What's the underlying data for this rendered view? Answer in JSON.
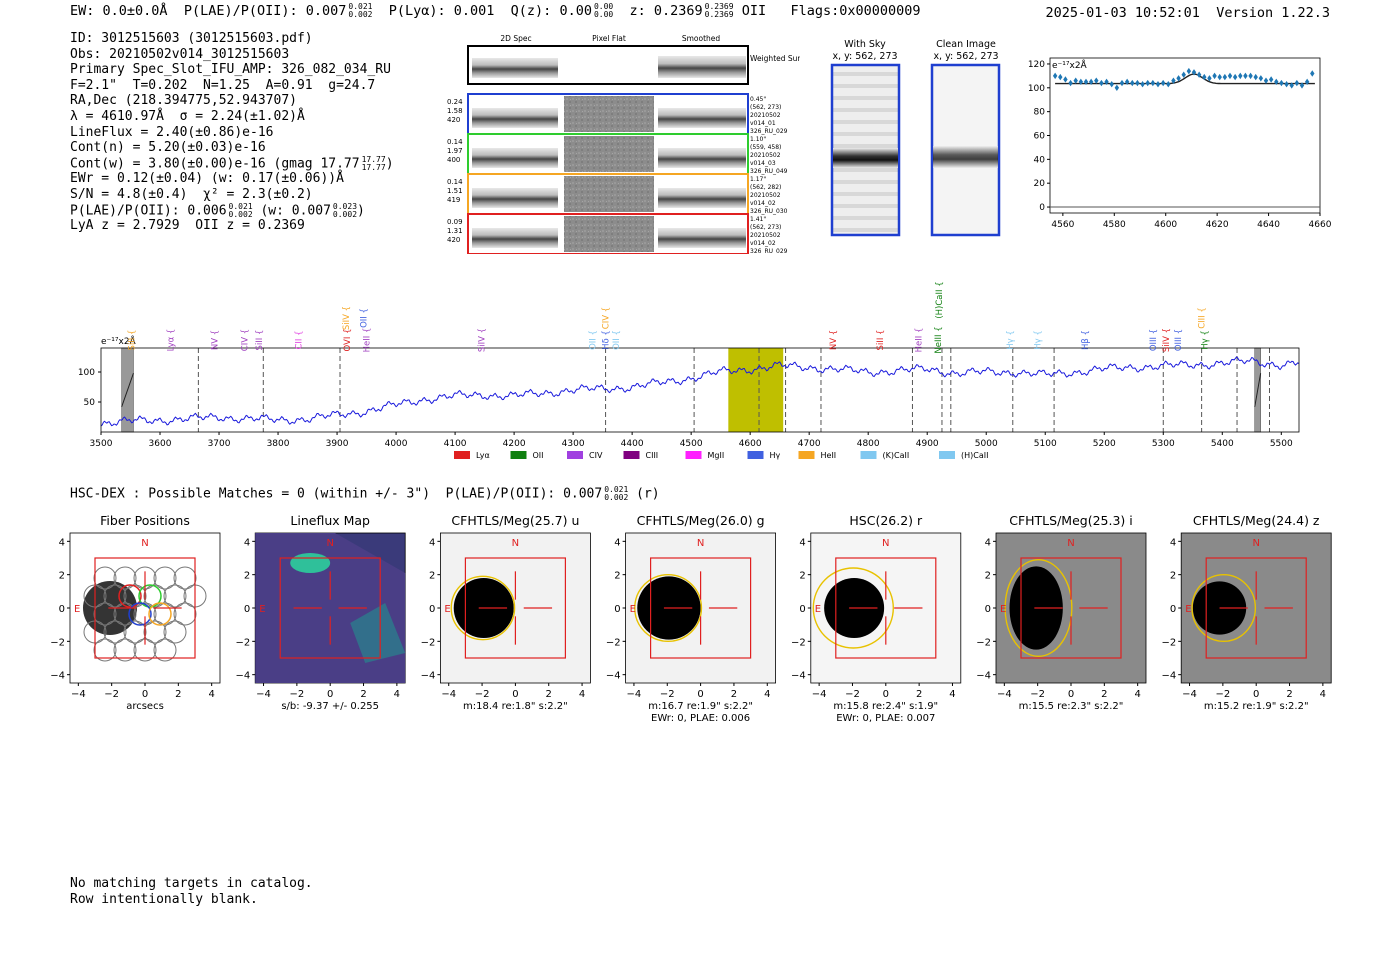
{
  "header": {
    "ew": "EW: 0.0±0.0Å",
    "plae_label": "P(LAE)/P(OII): 0.007",
    "plae_hi": "0.021",
    "plae_lo": "0.002",
    "plya": "P(Lyα): 0.001",
    "qz_label": "Q(z): 0.00",
    "qz_hi": "0.00",
    "qz_lo": "0.00",
    "z_label": "z: 0.2369",
    "z_hi": "0.2369",
    "z_lo": "0.2369",
    "z_line": "OII",
    "flags": "Flags:0x00000009",
    "datetime": "2025-01-03 10:52:01",
    "version": "Version 1.22.3"
  },
  "info": {
    "id": "ID: 3012515603 (3012515603.pdf)",
    "obs": "Obs: 20210502v014_3012515603",
    "primary": "Primary Spec_Slot_IFU_AMP: 326_082_034_RU",
    "params": "F=2.1\"  T=0.202  N=1.25  A=0.91  g=24.7",
    "radec": "RA,Dec (218.394775,52.943707)",
    "lambda": "λ = 4610.97Å  σ = 2.24(±1.02)Å",
    "lineflux": "LineFlux = 2.40(±0.86)e-16",
    "contn": "Cont(n) = 5.20(±0.03)e-16",
    "contw": "Cont(w) = 3.80(±0.00)e-16 (gmag 17.77",
    "contw_hi": "17.77",
    "contw_lo": "17.77",
    "ewr": "EWr = 0.12(±0.04) (w: 0.17(±0.06))Å",
    "sn": "S/N = 4.8(±0.4)  χ² = 2.3(±0.2)",
    "plae": "P(LAE)/P(OII): 0.006",
    "plae_hi": "0.021",
    "plae_lo": "0.002",
    "plae_w": "(w: 0.007",
    "plae_w_hi": "0.023",
    "plae_w_lo": "0.002",
    "lya": "LyA z = 2.7929  OII z = 0.2369"
  },
  "spec2d": {
    "col_headers": [
      "2D Spec",
      "Pixel Flat",
      "Smoothed"
    ],
    "weighted_label": "Weighted Sum",
    "fibers": [
      {
        "left": [
          "0.24",
          "1.58",
          "420"
        ],
        "right": [
          "0.45\"",
          "(562, 273)",
          "20210502",
          "v014_01",
          "326_RU_029"
        ],
        "color": "#1f3fd0"
      },
      {
        "left": [
          "0.14",
          "1.97",
          "400"
        ],
        "right": [
          "1.10\"",
          "(559, 458)",
          "20210502",
          "v014_03",
          "326_RU_049"
        ],
        "color": "#2ecc2e"
      },
      {
        "left": [
          "0.14",
          "1.51",
          "419"
        ],
        "right": [
          "1.17\"",
          "(562, 282)",
          "20210502",
          "v014_02",
          "326_RU_030"
        ],
        "color": "#f5a623"
      },
      {
        "left": [
          "0.09",
          "1.31",
          "420"
        ],
        "right": [
          "1.41\"",
          "(562, 273)",
          "20210502",
          "v014_02",
          "326_RU_029"
        ],
        "color": "#e02020"
      }
    ]
  },
  "sky": {
    "with_sky_title": "With Sky",
    "with_sky_sub": "x, y: 562, 273",
    "clean_title": "Clean Image",
    "clean_sub": "x, y: 562, 273"
  },
  "chart_data": [
    {
      "type": "line",
      "name": "zoom-spectrum",
      "unit_label": "e⁻¹⁷x2Å",
      "xlim": [
        4555,
        4660
      ],
      "ylim": [
        -5,
        125
      ],
      "xticks": [
        4560,
        4580,
        4600,
        4620,
        4640,
        4660
      ],
      "yticks": [
        0,
        20,
        40,
        60,
        80,
        100,
        120
      ],
      "points": [
        [
          4557,
          110
        ],
        [
          4559,
          109
        ],
        [
          4561,
          107
        ],
        [
          4563,
          104
        ],
        [
          4565,
          106
        ],
        [
          4567,
          105
        ],
        [
          4569,
          105
        ],
        [
          4571,
          105
        ],
        [
          4573,
          106
        ],
        [
          4575,
          104
        ],
        [
          4577,
          105
        ],
        [
          4579,
          103
        ],
        [
          4581,
          100
        ],
        [
          4583,
          104
        ],
        [
          4585,
          105
        ],
        [
          4587,
          104
        ],
        [
          4589,
          104
        ],
        [
          4591,
          103
        ],
        [
          4593,
          104
        ],
        [
          4595,
          104
        ],
        [
          4597,
          103
        ],
        [
          4599,
          104
        ],
        [
          4601,
          103
        ],
        [
          4603,
          106
        ],
        [
          4605,
          108
        ],
        [
          4607,
          111
        ],
        [
          4609,
          114
        ],
        [
          4611,
          113
        ],
        [
          4613,
          111
        ],
        [
          4615,
          109
        ],
        [
          4617,
          108
        ],
        [
          4619,
          110
        ],
        [
          4621,
          109
        ],
        [
          4623,
          109
        ],
        [
          4625,
          110
        ],
        [
          4627,
          109
        ],
        [
          4629,
          110
        ],
        [
          4631,
          110
        ],
        [
          4633,
          110
        ],
        [
          4635,
          109
        ],
        [
          4637,
          108
        ],
        [
          4639,
          106
        ],
        [
          4641,
          107
        ],
        [
          4643,
          105
        ],
        [
          4645,
          104
        ],
        [
          4647,
          103
        ],
        [
          4649,
          102
        ],
        [
          4651,
          104
        ],
        [
          4653,
          102
        ],
        [
          4655,
          105
        ],
        [
          4657,
          112
        ]
      ],
      "model": {
        "baseline": 103.5,
        "amplitude": 8,
        "center": 4610.97,
        "sigma": 2.24
      }
    },
    {
      "type": "line",
      "name": "full-spectrum",
      "unit_label": "e⁻¹⁷x2Å",
      "xlim": [
        3500,
        5530
      ],
      "ylim": [
        0,
        140
      ],
      "xticks": [
        3500,
        3600,
        3700,
        3800,
        3900,
        4000,
        4100,
        4200,
        4300,
        4400,
        4500,
        4600,
        4700,
        4800,
        4900,
        5000,
        5100,
        5200,
        5300,
        5400,
        5500
      ],
      "yticks": [
        50,
        100
      ],
      "series": [
        {
          "name": "flux",
          "x": [
            3500,
            3550,
            3600,
            3650,
            3700,
            3750,
            3800,
            3850,
            3900,
            3950,
            4000,
            4050,
            4100,
            4150,
            4200,
            4250,
            4300,
            4350,
            4400,
            4450,
            4500,
            4550,
            4600,
            4650,
            4700,
            4750,
            4800,
            4850,
            4900,
            4950,
            5000,
            5050,
            5100,
            5150,
            5200,
            5250,
            5300,
            5350,
            5400,
            5450,
            5500,
            5530
          ],
          "y": [
            15,
            18,
            20,
            22,
            25,
            22,
            20,
            22,
            28,
            35,
            45,
            55,
            60,
            62,
            60,
            65,
            70,
            72,
            75,
            82,
            90,
            100,
            105,
            110,
            108,
            104,
            100,
            102,
            105,
            98,
            100,
            100,
            95,
            100,
            105,
            108,
            110,
            112,
            115,
            118,
            112,
            115
          ]
        }
      ],
      "highlight": {
        "x0": 4563,
        "x1": 4656,
        "color": "#bfbf00"
      },
      "hatched": [
        [
          3535,
          3555
        ],
        [
          5455,
          5465
        ]
      ],
      "dashed_lines": [
        3665,
        3775,
        3905,
        4355,
        4505,
        4615,
        4660,
        4720,
        4875,
        4925,
        4940,
        5045,
        5115,
        5300,
        5365,
        5425,
        5480
      ],
      "line_labels": [
        {
          "text": "SiII",
          "x": 3552,
          "row": 2,
          "color": "#f5a623"
        },
        {
          "text": "Lyα",
          "x": 3618,
          "row": 2,
          "color": "#a040c0"
        },
        {
          "text": "NV",
          "x": 3692,
          "row": 2,
          "color": "#a040c0"
        },
        {
          "text": "CIV",
          "x": 3743,
          "row": 2,
          "color": "#a040c0"
        },
        {
          "text": "SiII",
          "x": 3768,
          "row": 2,
          "color": "#a040c0"
        },
        {
          "text": "CII",
          "x": 3835,
          "row": 2,
          "color": "#e040e0"
        },
        {
          "text": "SiIV",
          "x": 3915,
          "row": 1,
          "color": "#f5a623"
        },
        {
          "text": "OVI",
          "x": 3917,
          "row": 2,
          "color": "#e02020"
        },
        {
          "text": "OII",
          "x": 3945,
          "row": 1,
          "color": "#4060e0"
        },
        {
          "text": "HeII",
          "x": 3950,
          "row": 2,
          "color": "#a040c0"
        },
        {
          "text": "SiIV",
          "x": 4145,
          "row": 2,
          "color": "#a040c0"
        },
        {
          "text": "CIV",
          "x": 4355,
          "row": 1,
          "color": "#f5a623"
        },
        {
          "text": "OII",
          "x": 4333,
          "row": 2,
          "color": "#80c8f0"
        },
        {
          "text": "Hδ",
          "x": 4355,
          "row": 2,
          "color": "#4060e0"
        },
        {
          "text": "OII",
          "x": 4373,
          "row": 2,
          "color": "#80c8f0"
        },
        {
          "text": "NV",
          "x": 4740,
          "row": 2,
          "color": "#e02020"
        },
        {
          "text": "SiII",
          "x": 4820,
          "row": 2,
          "color": "#e02020"
        },
        {
          "text": "HeII",
          "x": 4885,
          "row": 2,
          "color": "#a040c0"
        },
        {
          "text": "(H)CaII",
          "x": 4920,
          "row": 0,
          "color": "#108010"
        },
        {
          "text": "NeIII",
          "x": 4918,
          "row": 2,
          "color": "#108010"
        },
        {
          "text": "Hγ",
          "x": 5040,
          "row": 2,
          "color": "#80c8f0"
        },
        {
          "text": "Hγ",
          "x": 5087,
          "row": 2,
          "color": "#80c8f0"
        },
        {
          "text": "Hβ",
          "x": 5167,
          "row": 2,
          "color": "#4060e0"
        },
        {
          "text": "OIII",
          "x": 5283,
          "row": 2,
          "color": "#4060e0"
        },
        {
          "text": "SiIV",
          "x": 5305,
          "row": 2,
          "color": "#e02020"
        },
        {
          "text": "OIII",
          "x": 5325,
          "row": 2,
          "color": "#4060e0"
        },
        {
          "text": "CIII",
          "x": 5365,
          "row": 1,
          "color": "#f5a623"
        },
        {
          "text": "Hγ",
          "x": 5370,
          "row": 2,
          "color": "#108010"
        }
      ],
      "legend": [
        {
          "text": "Lyα",
          "color": "#e02020"
        },
        {
          "text": "OII",
          "color": "#108010"
        },
        {
          "text": "CIV",
          "color": "#a040e0"
        },
        {
          "text": "CIII",
          "color": "#800080"
        },
        {
          "text": "MgII",
          "color": "#ff20ff"
        },
        {
          "text": "Hγ",
          "color": "#4060e0"
        },
        {
          "text": "HeII",
          "color": "#f5a623"
        },
        {
          "text": "(K)CaII",
          "color": "#80c8f0"
        },
        {
          "text": "(H)CaII",
          "color": "#80c8f0"
        }
      ]
    }
  ],
  "hsc_line": {
    "text": "HSC-DEX : Possible Matches = 0 (within +/- 3\")  P(LAE)/P(OII): 0.007",
    "hi": "0.021",
    "lo": "0.002",
    "suffix": "(r)"
  },
  "cutouts": [
    {
      "title": "Fiber Positions",
      "caption1": "arcsecs",
      "caption2": "",
      "bg": "fiber"
    },
    {
      "title": "Lineflux Map",
      "caption1": "s/b: -9.37 +/- 0.255",
      "caption2": "",
      "bg": "map"
    },
    {
      "title": "CFHTLS/Meg(25.7) u",
      "caption1": "m:18.4  re:1.8\"  s:2.2\"",
      "caption2": "",
      "bg": "star-u"
    },
    {
      "title": "CFHTLS/Meg(26.0) g",
      "caption1": "m:16.7  re:1.9\"  s:2.2\"",
      "caption2": "EWr: 0, PLAE: 0.006",
      "bg": "star-g"
    },
    {
      "title": "HSC(26.2) r",
      "caption1": "m:15.8  re:2.4\"  s:1.9\"",
      "caption2": "EWr: 0, PLAE: 0.007",
      "bg": "star-r"
    },
    {
      "title": "CFHTLS/Meg(25.3) i",
      "caption1": "m:15.5  re:2.3\"  s:2.2\"",
      "caption2": "",
      "bg": "star-i"
    },
    {
      "title": "CFHTLS/Meg(24.4) z",
      "caption1": "m:15.2  re:1.9\"  s:2.2\"",
      "caption2": "",
      "bg": "star-z"
    }
  ],
  "cutout_axes": {
    "ticks": [
      "−4",
      "−2",
      "0",
      "2",
      "4"
    ],
    "north": "N",
    "east": "E"
  },
  "footer": {
    "line1": "No matching targets in catalog.",
    "line2": "Row intentionally blank."
  }
}
